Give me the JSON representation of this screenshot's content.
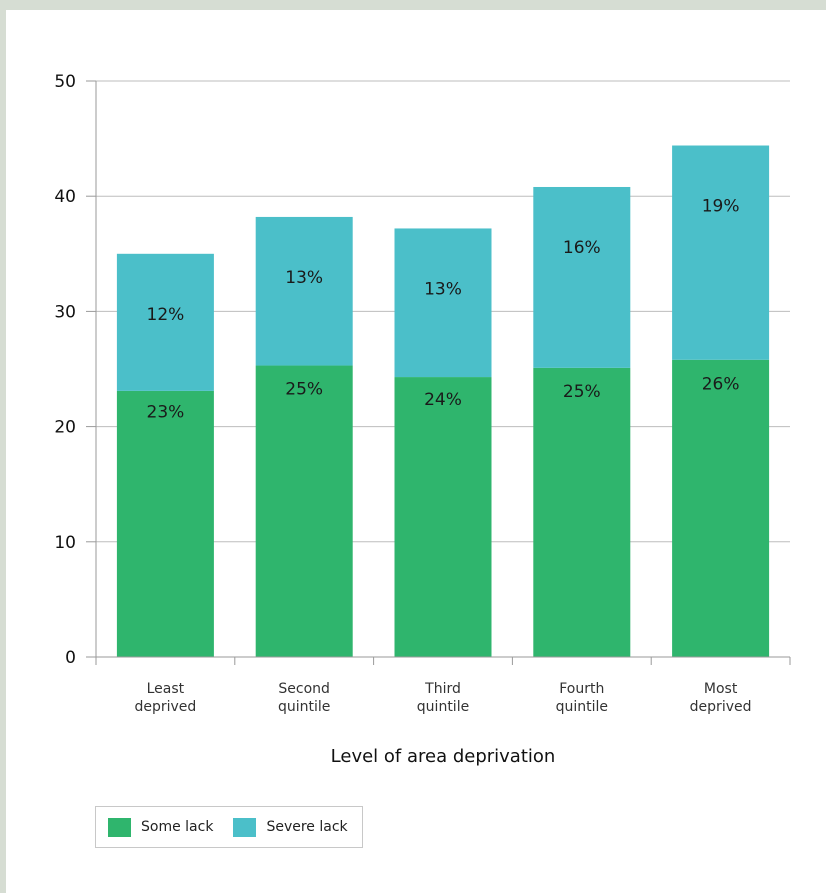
{
  "chart_data": {
    "type": "bar",
    "stacked": true,
    "title": "",
    "xlabel": "Level of area deprivation",
    "ylabel": "",
    "ylim": [
      0,
      50
    ],
    "yticks": [
      0,
      10,
      20,
      30,
      40,
      50
    ],
    "grid": true,
    "legend_position": "bottom-left",
    "categories": [
      "Least deprived",
      "Second quintile",
      "Third quintile",
      "Fourth quintile",
      "Most deprived"
    ],
    "category_lines": [
      [
        "Least",
        "deprived"
      ],
      [
        "Second",
        "quintile"
      ],
      [
        "Third",
        "quintile"
      ],
      [
        "Fourth",
        "quintile"
      ],
      [
        "Most",
        "deprived"
      ]
    ],
    "series": [
      {
        "name": "Some lack",
        "color": "#2fb56d",
        "values": [
          23.1,
          25.3,
          24.3,
          25.1,
          25.8
        ],
        "labels": [
          "23%",
          "25%",
          "24%",
          "25%",
          "26%"
        ]
      },
      {
        "name": "Severe lack",
        "color": "#4bbfc9",
        "values": [
          11.9,
          12.9,
          12.9,
          15.7,
          18.6
        ],
        "labels": [
          "12%",
          "13%",
          "13%",
          "16%",
          "19%"
        ]
      }
    ]
  }
}
